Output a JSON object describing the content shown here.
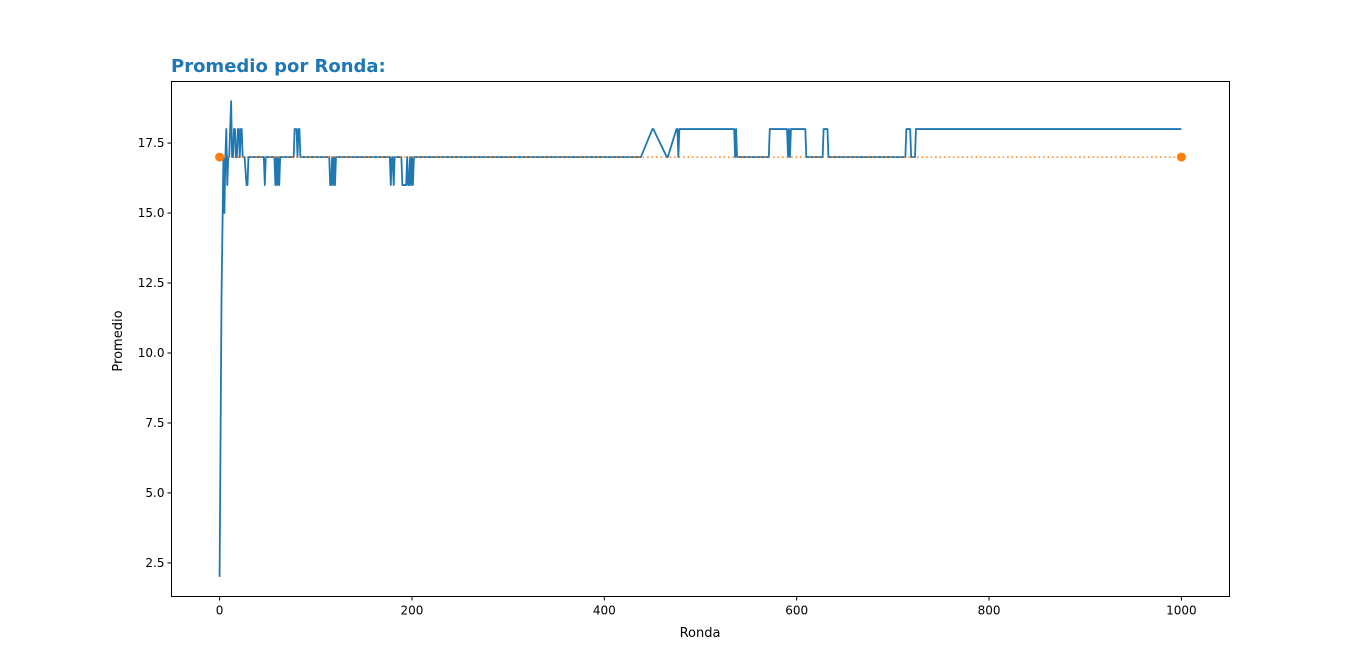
{
  "chart_data": {
    "type": "line",
    "title": "Promedio por Ronda:",
    "title_color": "#1f77b4",
    "xlabel": "Ronda",
    "ylabel": "Promedio",
    "xlim": [
      -50,
      1050
    ],
    "ylim": [
      1.3,
      19.7
    ],
    "xticks": [
      0,
      200,
      400,
      600,
      800,
      1000
    ],
    "xtick_labels": [
      "0",
      "200",
      "400",
      "600",
      "800",
      "1000"
    ],
    "yticks": [
      2.5,
      5.0,
      7.5,
      10.0,
      12.5,
      15.0,
      17.5
    ],
    "ytick_labels": [
      "2.5",
      "5.0",
      "7.5",
      "10.0",
      "12.5",
      "15.0",
      "17.5"
    ],
    "grid": false,
    "series": [
      {
        "color": "#1f77b4",
        "style": "solid",
        "x": [
          0,
          2,
          4,
          5,
          6,
          7,
          8,
          9,
          10,
          11,
          12,
          13,
          14,
          15,
          16,
          17,
          18,
          19,
          20,
          21,
          22,
          23,
          24,
          25,
          26,
          28,
          29,
          30,
          31,
          46,
          47,
          48,
          49,
          57,
          58,
          59,
          60,
          61,
          62,
          63,
          76,
          77,
          78,
          79,
          80,
          81,
          82,
          83,
          84,
          85,
          114,
          115,
          116,
          117,
          118,
          119,
          120,
          121,
          122,
          177,
          178,
          179,
          180,
          181,
          182,
          183,
          184,
          189,
          190,
          194,
          195,
          196,
          197,
          198,
          199,
          200,
          201,
          202,
          437,
          438,
          450,
          451,
          465,
          466,
          475,
          476,
          477,
          478,
          534,
          535,
          536,
          537,
          538,
          571,
          572,
          590,
          591,
          592,
          593,
          594,
          595,
          596,
          609,
          610,
          627,
          628,
          632,
          633,
          713,
          714,
          718,
          719,
          723,
          724,
          1000
        ],
        "y": [
          2,
          12,
          17,
          15,
          17,
          18,
          16,
          17,
          17,
          18,
          19,
          17,
          17,
          18,
          18,
          17,
          17,
          18,
          18,
          17,
          18,
          18,
          17,
          17,
          17,
          16,
          16,
          17,
          17,
          17,
          16,
          17,
          17,
          17,
          16,
          17,
          16,
          17,
          16,
          17,
          17,
          17,
          18,
          18,
          18,
          17,
          18,
          18,
          17,
          17,
          17,
          16,
          16,
          17,
          16,
          17,
          16,
          17,
          17,
          17,
          16,
          17,
          17,
          16,
          17,
          17,
          17,
          17,
          16,
          16,
          17,
          16,
          16,
          17,
          16,
          17,
          16,
          17,
          17,
          17,
          18,
          18,
          17,
          17,
          18,
          18,
          17,
          18,
          18,
          18,
          17,
          18,
          17,
          17,
          18,
          18,
          17,
          18,
          17,
          18,
          18,
          18,
          18,
          17,
          17,
          18,
          18,
          17,
          17,
          18,
          18,
          17,
          17,
          18,
          18
        ]
      },
      {
        "color": "#ff7f0e",
        "style": "dotted",
        "markers": "endpoints",
        "x": [
          0,
          1000
        ],
        "y": [
          17,
          17
        ]
      }
    ]
  }
}
